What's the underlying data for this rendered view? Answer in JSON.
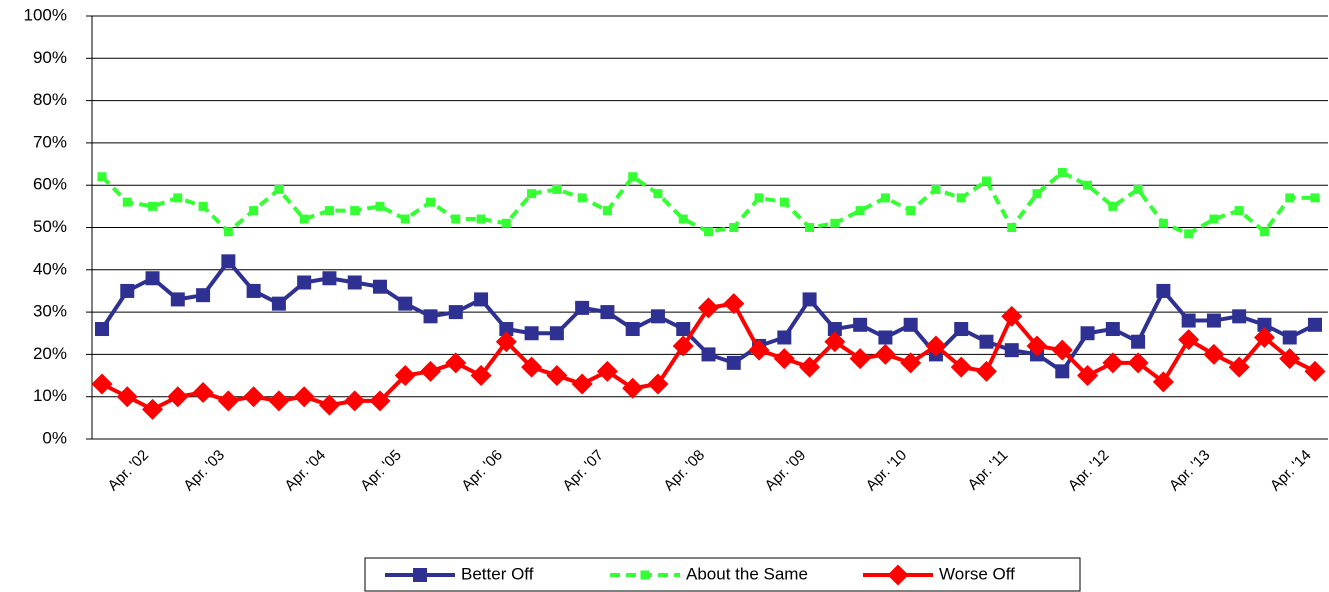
{
  "chart_data": {
    "type": "line",
    "categories": [
      null,
      null,
      "Apr. '02",
      null,
      null,
      "Apr. '03",
      null,
      null,
      null,
      "Apr. '04",
      null,
      null,
      "Apr. '05",
      null,
      null,
      null,
      "Apr. '06",
      null,
      null,
      null,
      "Apr. '07",
      null,
      null,
      null,
      "Apr. '08",
      null,
      null,
      null,
      "Apr. '09",
      null,
      null,
      null,
      "Apr. '10",
      null,
      null,
      null,
      "Apr. '11",
      null,
      null,
      null,
      "Apr. '12",
      null,
      null,
      null,
      "Apr. '13",
      null,
      null,
      null,
      "Apr. '14"
    ],
    "series": [
      {
        "name": "Better Off",
        "color": "#2e3192",
        "marker": "square",
        "dashed": false,
        "values": [
          26,
          35,
          38,
          33,
          34,
          42,
          35,
          32,
          37,
          38,
          37,
          36,
          32,
          29,
          30,
          33,
          26,
          25,
          25,
          31,
          30,
          26,
          29,
          26,
          20,
          18,
          22,
          24,
          33,
          26,
          27,
          24,
          27,
          20,
          26,
          23,
          21,
          20,
          16,
          25,
          26,
          23,
          35,
          28,
          28,
          29,
          27,
          24,
          27
        ]
      },
      {
        "name": "About the Same",
        "color": "#33ff33",
        "marker": "square",
        "dashed": true,
        "values": [
          62,
          56,
          55,
          57,
          55,
          49,
          54,
          59,
          52,
          54,
          54,
          55,
          52,
          56,
          52,
          52,
          51,
          58,
          59,
          57,
          54,
          62,
          58,
          52,
          49,
          50,
          57,
          56,
          50,
          51,
          54,
          57,
          54,
          59,
          57,
          61,
          50,
          58,
          63,
          60,
          55,
          59,
          51,
          48.5,
          52,
          54,
          49,
          57,
          57
        ]
      },
      {
        "name": "Worse Off",
        "color": "#ff0000",
        "marker": "diamond",
        "dashed": false,
        "values": [
          13,
          10,
          7,
          10,
          11,
          9,
          10,
          9,
          10,
          8,
          9,
          9,
          15,
          16,
          18,
          15,
          23,
          17,
          15,
          13,
          16,
          12,
          13,
          22,
          31,
          32,
          21,
          19,
          17,
          23,
          19,
          20,
          18,
          22,
          17,
          16,
          29,
          22,
          21,
          15,
          18,
          18,
          13.5,
          23.5,
          20,
          17,
          24,
          19,
          16
        ]
      }
    ],
    "ylim": [
      0,
      100
    ],
    "yticks": [
      {
        "value": 0,
        "label": "0%"
      },
      {
        "value": 10,
        "label": "10%"
      },
      {
        "value": 20,
        "label": "20%"
      },
      {
        "value": 30,
        "label": "30%"
      },
      {
        "value": 40,
        "label": "40%"
      },
      {
        "value": 50,
        "label": "50%"
      },
      {
        "value": 60,
        "label": "60%"
      },
      {
        "value": 70,
        "label": "70%"
      },
      {
        "value": 80,
        "label": "80%"
      },
      {
        "value": 90,
        "label": "90%"
      },
      {
        "value": 100,
        "label": "100%"
      }
    ],
    "grid": true,
    "legend": "bottom"
  }
}
